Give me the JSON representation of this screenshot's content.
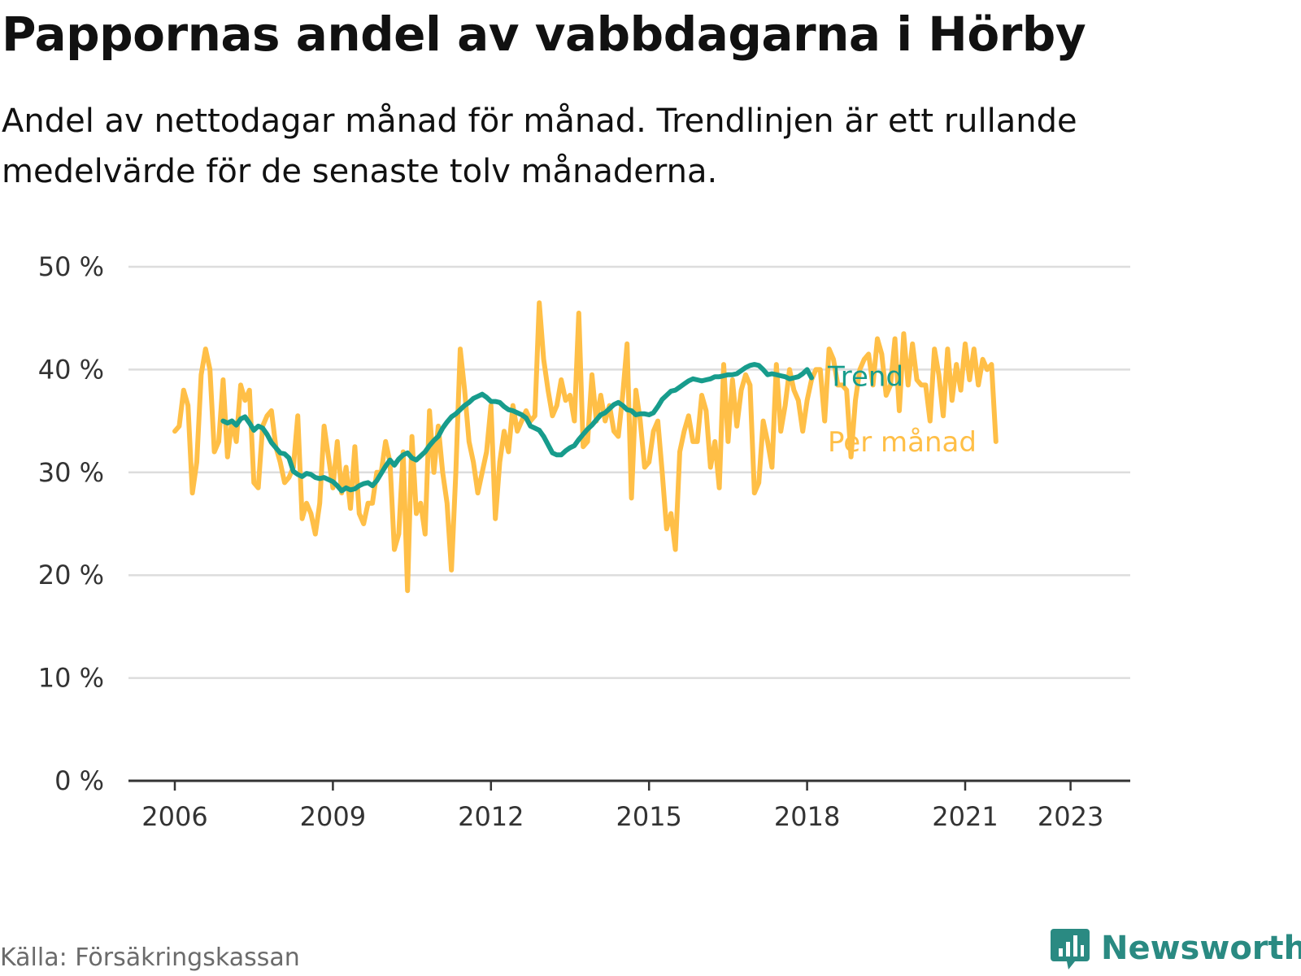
{
  "title": "Pappornas andel av vabbdagarna i Hörby",
  "subtitle": "Andel av nettodagar månad för månad. Trendlinjen är ett rullande medelvärde för de senaste tolv månaderna.",
  "source": "Källa: Försäkringskassan",
  "brand": "Newsworthy",
  "colors": {
    "trend": "#179c8c",
    "monthly": "#ffbf47",
    "grid": "#dddddd",
    "axis": "#333333",
    "brand": "#2a8a82"
  },
  "chart_data": {
    "type": "line",
    "title": "Pappornas andel av vabbdagarna i Hörby",
    "ylim": [
      0,
      50
    ],
    "y_ticks": [
      "0 %",
      "10 %",
      "20 %",
      "30 %",
      "40 %",
      "50 %"
    ],
    "y_tick_values": [
      0,
      10,
      20,
      30,
      40,
      50
    ],
    "x_ticks": [
      "2006",
      "2009",
      "2012",
      "2015",
      "2018",
      "2021",
      "2023"
    ],
    "x_tick_values": [
      2006,
      2009,
      2012,
      2015,
      2018,
      2021,
      2023
    ],
    "xlim": [
      2006,
      2023.33
    ],
    "grid": true,
    "series": [
      {
        "name": "Per månad",
        "start": "2006-01",
        "values": [
          34,
          34.5,
          38,
          36.5,
          28,
          31,
          39.5,
          42,
          40,
          32,
          33,
          39,
          31.5,
          35,
          33,
          38.5,
          37,
          38,
          29,
          28.5,
          34.5,
          35.5,
          36,
          32.5,
          31,
          29,
          29.5,
          30.5,
          35.5,
          25.5,
          27,
          26,
          24,
          27,
          34.5,
          31.5,
          28.5,
          33,
          28,
          30.5,
          26.5,
          32.5,
          26,
          25,
          27,
          27,
          30,
          30,
          33,
          31,
          22.5,
          24,
          32,
          18.5,
          33.5,
          26,
          27,
          24,
          36,
          30,
          34.5,
          30,
          27,
          20.5,
          30,
          42,
          38,
          33,
          31,
          28,
          30,
          32,
          36.5,
          25.5,
          31,
          34,
          32,
          36.5,
          34,
          35,
          36,
          35,
          35.5,
          46.5,
          41,
          38,
          35.5,
          36.5,
          39,
          37,
          37.5,
          35,
          45.5,
          32.5,
          33,
          39.5,
          35,
          37.5,
          35,
          36.5,
          34,
          33.5,
          37.5,
          42.5,
          27.5,
          38,
          35,
          30.5,
          31,
          34,
          35,
          30,
          24.5,
          26,
          22.5,
          32,
          34,
          35.5,
          33,
          33,
          37.5,
          36,
          30.5,
          33,
          28.5,
          40.5,
          33,
          39,
          34.5,
          38,
          39.5,
          38.5,
          28,
          29,
          35,
          33,
          30.5,
          40.5,
          34,
          36.5,
          40,
          38,
          37,
          34,
          37,
          39,
          40,
          40,
          35,
          42,
          41,
          38.5,
          38.5,
          38,
          31.5,
          37,
          40,
          41,
          41.5,
          38.5,
          43,
          41.5,
          37.5,
          38.5,
          43,
          36,
          43.5,
          38.5,
          42.5,
          39,
          38.5,
          38.5,
          35,
          42,
          39.5,
          35.5,
          42,
          37,
          40.5,
          38,
          42.5,
          39,
          42,
          38.5,
          41,
          40,
          40.5,
          33
        ]
      },
      {
        "name": "Trend",
        "start": "2006-12",
        "values": [
          35,
          34.8,
          35,
          34.6,
          35.2,
          35.4,
          34.8,
          34.1,
          34.5,
          34.3,
          33.7,
          32.9,
          32.4,
          31.9,
          31.8,
          31.4,
          30.1,
          29.8,
          29.6,
          29.9,
          29.8,
          29.5,
          29.4,
          29.5,
          29.3,
          29.1,
          28.7,
          28.2,
          28.5,
          28.3,
          28.4,
          28.7,
          28.9,
          29.0,
          28.7,
          29.2,
          29.9,
          30.6,
          31.2,
          30.7,
          31.3,
          31.7,
          31.9,
          31.4,
          31.2,
          31.6,
          32.0,
          32.6,
          33.1,
          33.5,
          34.3,
          34.9,
          35.4,
          35.7,
          36.1,
          36.5,
          36.8,
          37.2,
          37.4,
          37.6,
          37.3,
          36.9,
          36.9,
          36.8,
          36.4,
          36.1,
          36.0,
          35.8,
          35.6,
          35.3,
          34.5,
          34.3,
          34.1,
          33.5,
          32.7,
          31.9,
          31.7,
          31.7,
          32.1,
          32.4,
          32.6,
          33.2,
          33.7,
          34.2,
          34.6,
          35.1,
          35.6,
          35.8,
          36.2,
          36.6,
          36.8,
          36.5,
          36.1,
          36.0,
          35.6,
          35.7,
          35.7,
          35.6,
          35.8,
          36.4,
          37.1,
          37.5,
          37.9,
          38.0,
          38.3,
          38.6,
          38.9,
          39.1,
          39.0,
          38.9,
          39.0,
          39.1,
          39.3,
          39.3,
          39.4,
          39.5,
          39.5,
          39.6,
          39.9,
          40.2,
          40.4,
          40.5,
          40.4,
          40.0,
          39.5,
          39.6,
          39.5,
          39.4,
          39.3,
          39.1,
          39.2,
          39.3,
          39.6,
          40.0,
          39.2
        ]
      }
    ],
    "end_labels": [
      "Trend",
      "Per månad"
    ]
  }
}
